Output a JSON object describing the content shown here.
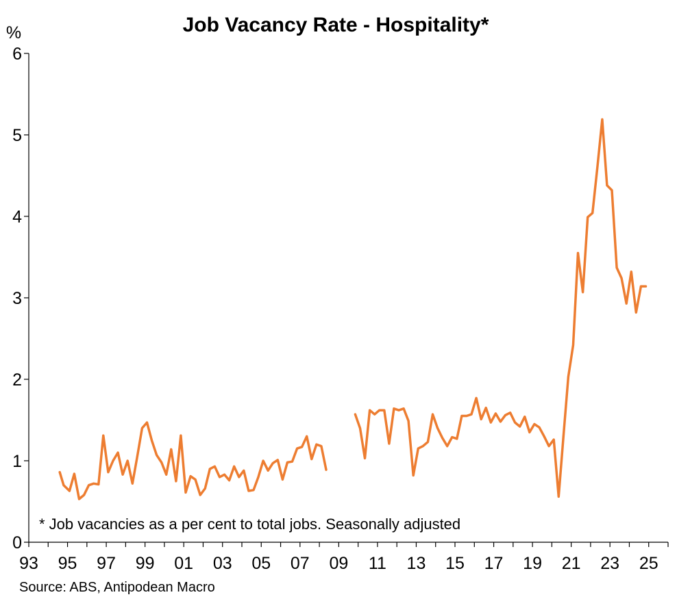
{
  "chart_data": {
    "type": "line",
    "title": "Job Vacancy Rate - Hospitality*",
    "ylabel": "%",
    "ylim": [
      0,
      6
    ],
    "yticks": [
      0,
      1,
      2,
      3,
      4,
      5,
      6
    ],
    "xlim": [
      1993,
      2026
    ],
    "xticks": [
      1993,
      1995,
      1997,
      1999,
      2001,
      2003,
      2005,
      2007,
      2009,
      2011,
      2013,
      2015,
      2017,
      2019,
      2021,
      2023,
      2025
    ],
    "xtick_labels": [
      "93",
      "95",
      "97",
      "99",
      "01",
      "03",
      "05",
      "07",
      "09",
      "11",
      "13",
      "15",
      "17",
      "19",
      "21",
      "23",
      "25"
    ],
    "grid": false,
    "color": "#ED7D31",
    "note": "* Job vacancies as a per cent to total jobs. Seasonally adjusted",
    "source": "Source: ABS, Antipodean Macro",
    "series": [
      {
        "segments": [
          {
            "x": [
              1994.6,
              1994.8,
              1995.1,
              1995.35,
              1995.6,
              1995.85,
              1996.1,
              1996.35,
              1996.6,
              1996.85,
              1997.1,
              1997.35,
              1997.6,
              1997.85,
              1998.1,
              1998.35,
              1998.6,
              1998.85,
              1999.1,
              1999.35,
              1999.6,
              1999.85,
              2000.1,
              2000.35,
              2000.6,
              2000.85,
              2001.1,
              2001.35,
              2001.6,
              2001.85,
              2002.1,
              2002.35,
              2002.6,
              2002.85,
              2003.1,
              2003.35,
              2003.6,
              2003.85,
              2004.1,
              2004.35,
              2004.6,
              2004.85,
              2005.1,
              2005.35,
              2005.6,
              2005.85,
              2006.1,
              2006.35,
              2006.6,
              2006.85,
              2007.1,
              2007.35,
              2007.6,
              2007.85,
              2008.1,
              2008.35
            ],
            "y": [
              0.86,
              0.7,
              0.63,
              0.84,
              0.53,
              0.58,
              0.7,
              0.72,
              0.71,
              1.31,
              0.86,
              1.0,
              1.1,
              0.83,
              1.0,
              0.72,
              1.05,
              1.4,
              1.47,
              1.25,
              1.07,
              0.98,
              0.83,
              1.14,
              0.75,
              1.31,
              0.61,
              0.81,
              0.77,
              0.58,
              0.66,
              0.9,
              0.93,
              0.8,
              0.83,
              0.76,
              0.93,
              0.8,
              0.88,
              0.63,
              0.64,
              0.8,
              1.0,
              0.88,
              0.97,
              1.01,
              0.77,
              0.98,
              0.99,
              1.15,
              1.17,
              1.3,
              1.02,
              1.2,
              1.18,
              0.89
            ]
          },
          {
            "x": [
              2009.85,
              2010.1,
              2010.35,
              2010.6,
              2010.85,
              2011.1,
              2011.35,
              2011.6,
              2011.85,
              2012.1,
              2012.35,
              2012.6,
              2012.85,
              2013.1,
              2013.35,
              2013.6,
              2013.85,
              2014.1,
              2014.35,
              2014.6,
              2014.85,
              2015.1,
              2015.35,
              2015.6,
              2015.85,
              2016.1,
              2016.35,
              2016.6,
              2016.85,
              2017.1,
              2017.35,
              2017.6,
              2017.85,
              2018.1,
              2018.35,
              2018.6,
              2018.85,
              2019.1,
              2019.35,
              2019.6,
              2019.85,
              2020.1,
              2020.35,
              2020.6,
              2020.85,
              2021.1,
              2021.35,
              2021.6,
              2021.85,
              2022.1,
              2022.35,
              2022.6,
              2022.85,
              2023.1,
              2023.35,
              2023.6,
              2023.85,
              2024.1,
              2024.35,
              2024.6,
              2024.85
            ],
            "y": [
              1.57,
              1.4,
              1.03,
              1.62,
              1.57,
              1.62,
              1.62,
              1.21,
              1.64,
              1.62,
              1.64,
              1.49,
              0.82,
              1.15,
              1.18,
              1.23,
              1.57,
              1.4,
              1.28,
              1.18,
              1.29,
              1.27,
              1.55,
              1.55,
              1.57,
              1.77,
              1.51,
              1.65,
              1.47,
              1.58,
              1.48,
              1.56,
              1.59,
              1.47,
              1.42,
              1.54,
              1.35,
              1.45,
              1.41,
              1.3,
              1.18,
              1.26,
              0.56,
              1.3,
              2.03,
              2.42,
              3.55,
              3.07,
              3.99,
              4.04,
              4.6,
              5.19,
              4.38,
              4.32,
              3.37,
              3.24,
              2.93,
              3.32,
              2.82,
              3.14,
              3.14
            ]
          }
        ]
      }
    ]
  }
}
